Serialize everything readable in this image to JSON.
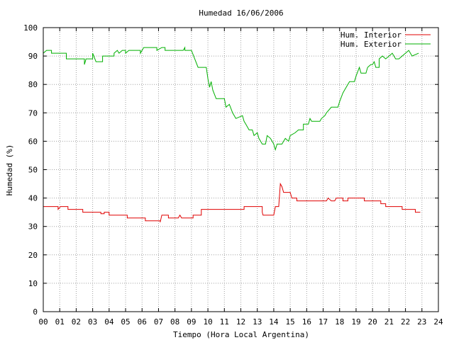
{
  "chart_data": {
    "type": "line",
    "title": "Humedad 16/06/2006",
    "xlabel": "Tiempo (Hora Local Argentina)",
    "ylabel": "Humedad (%)",
    "xlim": [
      0,
      24
    ],
    "ylim": [
      0,
      100
    ],
    "x_ticks": [
      "00",
      "01",
      "02",
      "03",
      "04",
      "05",
      "06",
      "07",
      "08",
      "09",
      "10",
      "11",
      "12",
      "13",
      "14",
      "15",
      "16",
      "17",
      "18",
      "19",
      "20",
      "21",
      "22",
      "23",
      "24"
    ],
    "y_ticks": [
      0,
      10,
      20,
      30,
      40,
      50,
      60,
      70,
      80,
      90,
      100
    ],
    "grid": true,
    "legend_position": "top-right",
    "series": [
      {
        "name": "Hum. Interior",
        "color": "#e00000",
        "points": [
          [
            0.0,
            37
          ],
          [
            0.9,
            37
          ],
          [
            0.9,
            36
          ],
          [
            1.05,
            37
          ],
          [
            1.5,
            37
          ],
          [
            1.5,
            36
          ],
          [
            2.4,
            36
          ],
          [
            2.4,
            35
          ],
          [
            3.5,
            35
          ],
          [
            3.5,
            34.5
          ],
          [
            3.7,
            34.5
          ],
          [
            3.7,
            35
          ],
          [
            4.0,
            35
          ],
          [
            4.0,
            34
          ],
          [
            5.1,
            34
          ],
          [
            5.1,
            33
          ],
          [
            6.2,
            33
          ],
          [
            6.2,
            32
          ],
          [
            7.1,
            32
          ],
          [
            7.1,
            31.5
          ],
          [
            7.2,
            34
          ],
          [
            7.6,
            34
          ],
          [
            7.6,
            33
          ],
          [
            8.2,
            33
          ],
          [
            8.3,
            34
          ],
          [
            8.4,
            33
          ],
          [
            9.1,
            33
          ],
          [
            9.1,
            34
          ],
          [
            9.6,
            34
          ],
          [
            9.6,
            36
          ],
          [
            11.0,
            36
          ],
          [
            11.0,
            36
          ],
          [
            12.2,
            36
          ],
          [
            12.2,
            37
          ],
          [
            13.3,
            37
          ],
          [
            13.3,
            35
          ],
          [
            13.35,
            34
          ],
          [
            14.0,
            34
          ],
          [
            14.1,
            37
          ],
          [
            14.3,
            37
          ],
          [
            14.4,
            45
          ],
          [
            14.5,
            44
          ],
          [
            14.6,
            42
          ],
          [
            15.0,
            42
          ],
          [
            15.1,
            40
          ],
          [
            15.4,
            40
          ],
          [
            15.4,
            39
          ],
          [
            17.2,
            39
          ],
          [
            17.3,
            40
          ],
          [
            17.5,
            39
          ],
          [
            17.7,
            39
          ],
          [
            17.8,
            40
          ],
          [
            18.2,
            40
          ],
          [
            18.2,
            39
          ],
          [
            18.5,
            39
          ],
          [
            18.5,
            40
          ],
          [
            19.5,
            40
          ],
          [
            19.5,
            39
          ],
          [
            20.5,
            39
          ],
          [
            20.5,
            38
          ],
          [
            20.8,
            38
          ],
          [
            20.8,
            37
          ],
          [
            21.8,
            37
          ],
          [
            21.8,
            36
          ],
          [
            22.6,
            36
          ],
          [
            22.6,
            35
          ],
          [
            22.9,
            35
          ]
        ]
      },
      {
        "name": "Hum. Exterior",
        "color": "#00b000",
        "points": [
          [
            0.0,
            91
          ],
          [
            0.2,
            92
          ],
          [
            0.5,
            92
          ],
          [
            0.5,
            91
          ],
          [
            1.4,
            91
          ],
          [
            1.4,
            89
          ],
          [
            2.5,
            89
          ],
          [
            2.5,
            87
          ],
          [
            2.6,
            89
          ],
          [
            3.0,
            89
          ],
          [
            3.0,
            91
          ],
          [
            3.2,
            88
          ],
          [
            3.6,
            88
          ],
          [
            3.6,
            90
          ],
          [
            4.3,
            90
          ],
          [
            4.3,
            91
          ],
          [
            4.5,
            92
          ],
          [
            4.6,
            91
          ],
          [
            4.8,
            92
          ],
          [
            5.0,
            92
          ],
          [
            5.0,
            91
          ],
          [
            5.2,
            92
          ],
          [
            5.9,
            92
          ],
          [
            5.9,
            91
          ],
          [
            6.1,
            93
          ],
          [
            6.9,
            93
          ],
          [
            6.9,
            92
          ],
          [
            7.2,
            93
          ],
          [
            7.4,
            93
          ],
          [
            7.4,
            92
          ],
          [
            8.5,
            92
          ],
          [
            8.6,
            93
          ],
          [
            8.6,
            92
          ],
          [
            9.0,
            92
          ],
          [
            9.2,
            89
          ],
          [
            9.4,
            86
          ],
          [
            9.9,
            86
          ],
          [
            10.0,
            82
          ],
          [
            10.1,
            79
          ],
          [
            10.2,
            81
          ],
          [
            10.3,
            78
          ],
          [
            10.5,
            75
          ],
          [
            11.0,
            75
          ],
          [
            11.1,
            72
          ],
          [
            11.3,
            73
          ],
          [
            11.5,
            70
          ],
          [
            11.7,
            68
          ],
          [
            12.1,
            69
          ],
          [
            12.2,
            67
          ],
          [
            12.3,
            66
          ],
          [
            12.5,
            64
          ],
          [
            12.7,
            64
          ],
          [
            12.8,
            62
          ],
          [
            13.0,
            63
          ],
          [
            13.1,
            61
          ],
          [
            13.3,
            59
          ],
          [
            13.5,
            59
          ],
          [
            13.6,
            62
          ],
          [
            13.8,
            61
          ],
          [
            13.9,
            60
          ],
          [
            14.0,
            59
          ],
          [
            14.1,
            57
          ],
          [
            14.2,
            59
          ],
          [
            14.5,
            59
          ],
          [
            14.6,
            60
          ],
          [
            14.7,
            61
          ],
          [
            14.9,
            60
          ],
          [
            15.0,
            62
          ],
          [
            15.3,
            63
          ],
          [
            15.5,
            64
          ],
          [
            15.8,
            64
          ],
          [
            15.8,
            66
          ],
          [
            16.1,
            66
          ],
          [
            16.2,
            68
          ],
          [
            16.3,
            67
          ],
          [
            16.8,
            67
          ],
          [
            16.9,
            68
          ],
          [
            17.1,
            69
          ],
          [
            17.2,
            70
          ],
          [
            17.5,
            72
          ],
          [
            17.9,
            72
          ],
          [
            18.0,
            74
          ],
          [
            18.2,
            77
          ],
          [
            18.4,
            79
          ],
          [
            18.6,
            81
          ],
          [
            18.9,
            81
          ],
          [
            19.0,
            83
          ],
          [
            19.2,
            86
          ],
          [
            19.3,
            84
          ],
          [
            19.6,
            84
          ],
          [
            19.7,
            86
          ],
          [
            19.9,
            87
          ],
          [
            20.0,
            87
          ],
          [
            20.1,
            88
          ],
          [
            20.2,
            86
          ],
          [
            20.4,
            86
          ],
          [
            20.4,
            89
          ],
          [
            20.6,
            90
          ],
          [
            20.8,
            89
          ],
          [
            21.0,
            90
          ],
          [
            21.2,
            91
          ],
          [
            21.4,
            89
          ],
          [
            21.6,
            89
          ],
          [
            21.8,
            90
          ],
          [
            22.0,
            91
          ],
          [
            22.2,
            92
          ],
          [
            22.4,
            90
          ],
          [
            22.8,
            91
          ]
        ]
      }
    ]
  }
}
